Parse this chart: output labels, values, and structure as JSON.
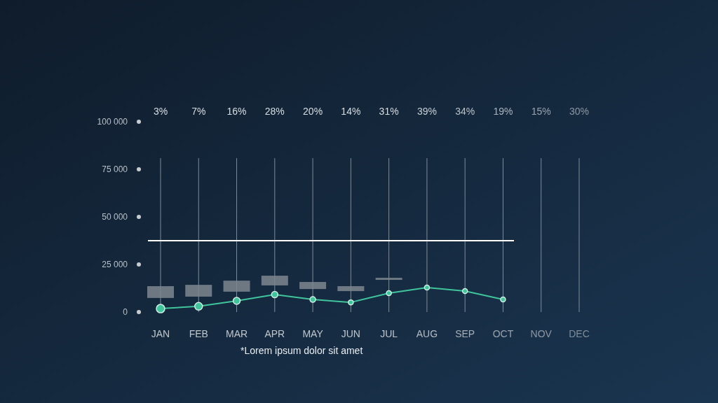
{
  "chart_data": {
    "type": "line",
    "categories": [
      "JAN",
      "FEB",
      "MAR",
      "APR",
      "MAY",
      "JUN",
      "JUL",
      "AUG",
      "SEP",
      "OCT",
      "NOV",
      "DEC"
    ],
    "ylim": [
      0,
      100000
    ],
    "yticks": [
      {
        "value": 0,
        "label": "0"
      },
      {
        "value": 25000,
        "label": "25 000"
      },
      {
        "value": 50000,
        "label": "50 000"
      },
      {
        "value": 75000,
        "label": "75 000"
      },
      {
        "value": 100000,
        "label": "100 000"
      }
    ],
    "grid": "x",
    "marker": "circle",
    "series": [
      {
        "type": "bar",
        "color": "#7d868e",
        "base": [
          7400,
          8100,
          10700,
          14000,
          12100,
          11000,
          16900,
          null,
          null,
          null,
          null,
          null
        ],
        "values": [
          6200,
          6200,
          5800,
          5100,
          3700,
          2600,
          1100,
          null,
          null,
          null,
          null,
          null
        ]
      },
      {
        "color": "#3fc49c",
        "values": [
          1800,
          3000,
          5900,
          9200,
          6600,
          5100,
          9900,
          12900,
          11000,
          6600,
          null,
          null
        ]
      }
    ],
    "ref_lines": [
      {
        "axis": "y",
        "value": 37500,
        "color": "#ffffff"
      }
    ],
    "annotations": [
      "3%",
      "7%",
      "16%",
      "28%",
      "20%",
      "14%",
      "31%",
      "39%",
      "34%",
      "19%",
      "15%",
      "30%",
      "*Lorem ipsum dolor sit amet"
    ]
  }
}
